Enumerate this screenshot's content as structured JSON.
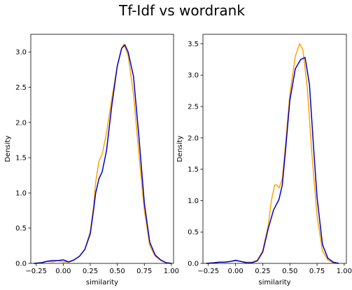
{
  "figure": {
    "title": "Tf-Idf vs wordrank"
  },
  "chart_data": [
    {
      "type": "line",
      "xlabel": "similarity",
      "ylabel": "Density",
      "xlim": [
        -0.3,
        1.02
      ],
      "ylim": [
        0,
        3.25
      ],
      "xticks": [
        -0.25,
        0.0,
        0.25,
        0.5,
        0.75,
        1.0
      ],
      "xtick_labels": [
        "−0.25",
        "0.00",
        "0.25",
        "0.50",
        "0.75",
        "1.00"
      ],
      "yticks": [
        0.0,
        0.5,
        1.0,
        1.5,
        2.0,
        2.5,
        3.0
      ],
      "ytick_labels": [
        "0.0",
        "0.5",
        "1.0",
        "1.5",
        "2.0",
        "2.5",
        "3.0"
      ],
      "grid": false,
      "series": [
        {
          "color": "#ffa500",
          "points": [
            [
              -0.27,
              0
            ],
            [
              -0.2,
              0.01
            ],
            [
              -0.15,
              0.03
            ],
            [
              -0.1,
              0.02
            ],
            [
              -0.05,
              0.04
            ],
            [
              0.0,
              0.02
            ],
            [
              0.05,
              0.02
            ],
            [
              0.1,
              0.05
            ],
            [
              0.15,
              0.1
            ],
            [
              0.2,
              0.2
            ],
            [
              0.25,
              0.45
            ],
            [
              0.28,
              0.8
            ],
            [
              0.3,
              1.15
            ],
            [
              0.33,
              1.45
            ],
            [
              0.36,
              1.55
            ],
            [
              0.4,
              1.85
            ],
            [
              0.45,
              2.35
            ],
            [
              0.5,
              2.8
            ],
            [
              0.54,
              3.05
            ],
            [
              0.56,
              3.11
            ],
            [
              0.6,
              2.95
            ],
            [
              0.65,
              2.4
            ],
            [
              0.7,
              1.55
            ],
            [
              0.75,
              0.75
            ],
            [
              0.8,
              0.25
            ],
            [
              0.85,
              0.1
            ],
            [
              0.9,
              0.04
            ],
            [
              0.95,
              0.01
            ],
            [
              1.0,
              0
            ]
          ]
        },
        {
          "color": "#0000cd",
          "points": [
            [
              -0.27,
              0
            ],
            [
              -0.2,
              0.01
            ],
            [
              -0.15,
              0.03
            ],
            [
              -0.1,
              0.04
            ],
            [
              -0.05,
              0.04
            ],
            [
              0.0,
              0.05
            ],
            [
              0.05,
              0.02
            ],
            [
              0.1,
              0.05
            ],
            [
              0.15,
              0.1
            ],
            [
              0.2,
              0.2
            ],
            [
              0.25,
              0.42
            ],
            [
              0.28,
              0.75
            ],
            [
              0.3,
              1.0
            ],
            [
              0.33,
              1.2
            ],
            [
              0.36,
              1.3
            ],
            [
              0.4,
              1.6
            ],
            [
              0.45,
              2.25
            ],
            [
              0.5,
              2.8
            ],
            [
              0.54,
              3.05
            ],
            [
              0.57,
              3.1
            ],
            [
              0.6,
              3.0
            ],
            [
              0.65,
              2.65
            ],
            [
              0.7,
              1.8
            ],
            [
              0.75,
              0.85
            ],
            [
              0.8,
              0.3
            ],
            [
              0.85,
              0.12
            ],
            [
              0.9,
              0.05
            ],
            [
              0.95,
              0.01
            ],
            [
              1.0,
              0
            ]
          ]
        }
      ]
    },
    {
      "type": "line",
      "xlabel": "similarity",
      "ylabel": "Density",
      "xlim": [
        -0.3,
        1.02
      ],
      "ylim": [
        0,
        3.65
      ],
      "xticks": [
        -0.25,
        0.0,
        0.25,
        0.5,
        0.75,
        1.0
      ],
      "xtick_labels": [
        "−0.25",
        "0.00",
        "0.25",
        "0.50",
        "0.75",
        "1.00"
      ],
      "yticks": [
        0.0,
        0.5,
        1.0,
        1.5,
        2.0,
        2.5,
        3.0,
        3.5
      ],
      "ytick_labels": [
        "0.0",
        "0.5",
        "1.0",
        "1.5",
        "2.0",
        "2.5",
        "3.0",
        "3.5"
      ],
      "grid": false,
      "series": [
        {
          "color": "#ffa500",
          "points": [
            [
              -0.27,
              0
            ],
            [
              -0.2,
              0.01
            ],
            [
              -0.15,
              0.02
            ],
            [
              -0.1,
              0.02
            ],
            [
              -0.05,
              0.03
            ],
            [
              0.0,
              0.04
            ],
            [
              0.05,
              0.03
            ],
            [
              0.1,
              0.02
            ],
            [
              0.15,
              0.02
            ],
            [
              0.2,
              0.05
            ],
            [
              0.25,
              0.2
            ],
            [
              0.3,
              0.6
            ],
            [
              0.33,
              1.0
            ],
            [
              0.36,
              1.25
            ],
            [
              0.38,
              1.25
            ],
            [
              0.4,
              1.2
            ],
            [
              0.43,
              1.35
            ],
            [
              0.46,
              1.9
            ],
            [
              0.5,
              2.7
            ],
            [
              0.55,
              3.3
            ],
            [
              0.59,
              3.5
            ],
            [
              0.62,
              3.4
            ],
            [
              0.66,
              2.8
            ],
            [
              0.7,
              1.8
            ],
            [
              0.75,
              0.75
            ],
            [
              0.8,
              0.2
            ],
            [
              0.85,
              0.05
            ],
            [
              0.9,
              0.01
            ],
            [
              0.95,
              0
            ]
          ]
        },
        {
          "color": "#0000cd",
          "points": [
            [
              -0.27,
              0
            ],
            [
              -0.2,
              0.01
            ],
            [
              -0.15,
              0.02
            ],
            [
              -0.1,
              0.02
            ],
            [
              -0.05,
              0.03
            ],
            [
              0.0,
              0.05
            ],
            [
              0.05,
              0.03
            ],
            [
              0.1,
              0.01
            ],
            [
              0.15,
              0.01
            ],
            [
              0.2,
              0.04
            ],
            [
              0.25,
              0.18
            ],
            [
              0.3,
              0.55
            ],
            [
              0.35,
              0.85
            ],
            [
              0.4,
              1.02
            ],
            [
              0.43,
              1.25
            ],
            [
              0.46,
              1.8
            ],
            [
              0.5,
              2.6
            ],
            [
              0.55,
              3.1
            ],
            [
              0.6,
              3.25
            ],
            [
              0.64,
              3.28
            ],
            [
              0.68,
              2.85
            ],
            [
              0.72,
              1.8
            ],
            [
              0.75,
              1.05
            ],
            [
              0.8,
              0.3
            ],
            [
              0.85,
              0.08
            ],
            [
              0.9,
              0.02
            ],
            [
              0.95,
              0
            ]
          ]
        }
      ]
    }
  ]
}
